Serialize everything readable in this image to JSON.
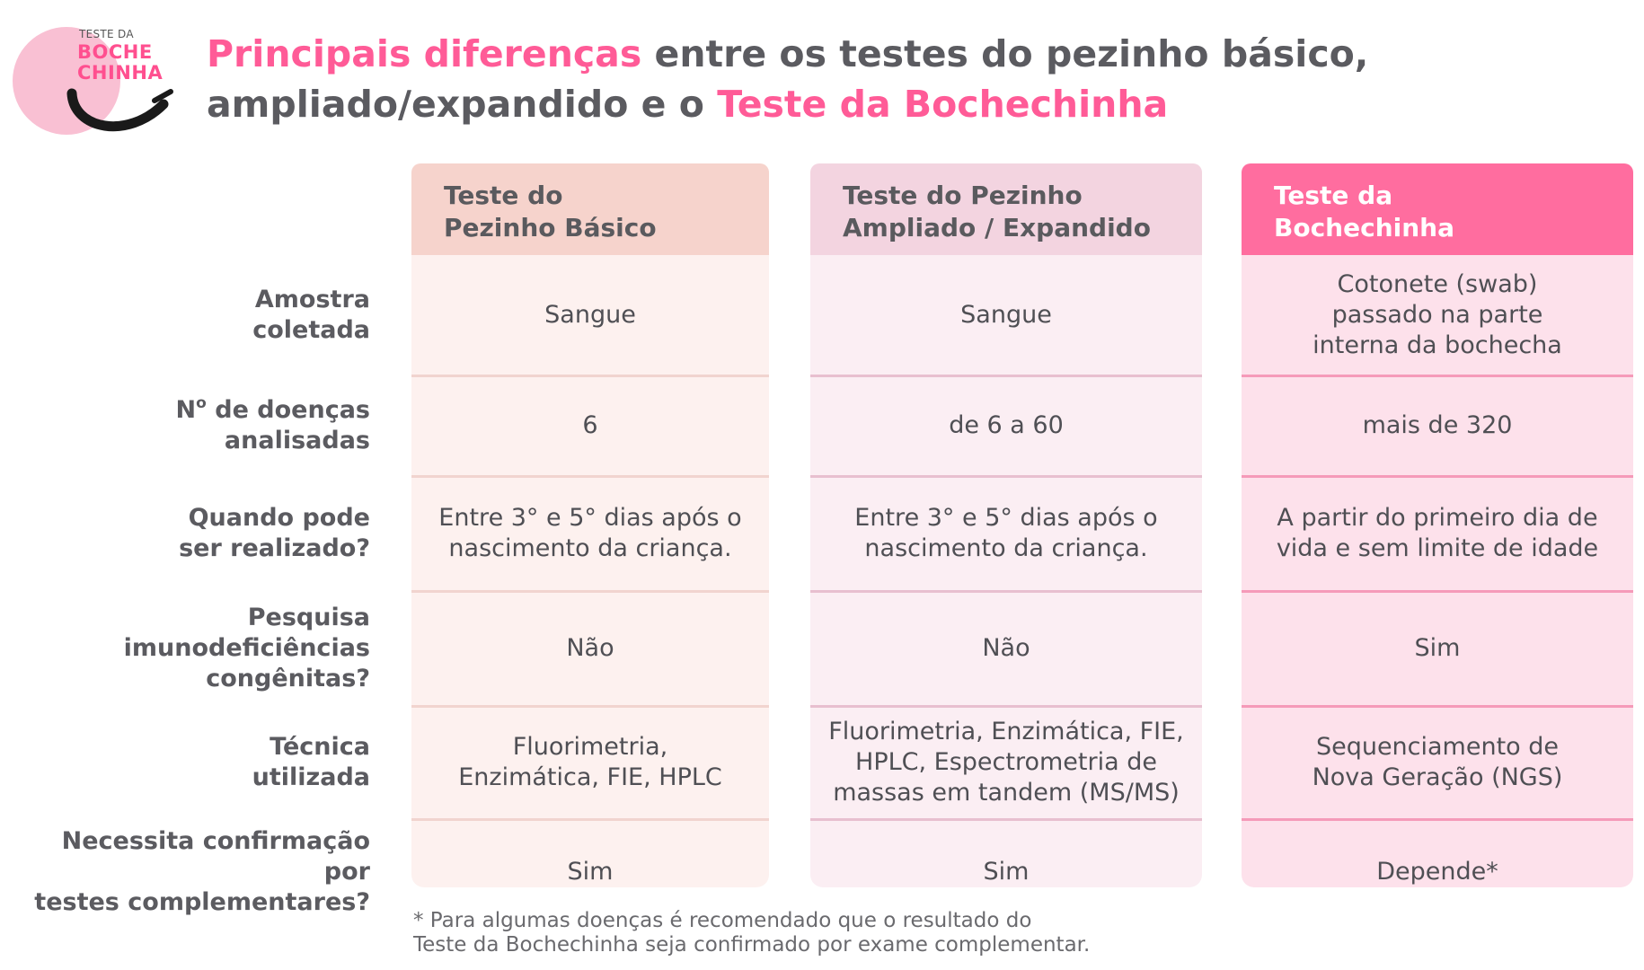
{
  "logo": {
    "small_text": "TESTE DA",
    "line1": "BOCHE",
    "line2": "CHINHA",
    "colors": {
      "circle": "#f9c0d3",
      "text": "#ff4f8f",
      "smile": "#1a1a1a"
    }
  },
  "title": {
    "part1": "Principais diferenças",
    "part2": " entre os testes do pezinho básico,",
    "part3": "ampliado/expandido e o ",
    "part4": "Teste da Bochechinha"
  },
  "columns": [
    {
      "header_line1": "Teste do",
      "header_line2": "Pezinho Básico"
    },
    {
      "header_line1": "Teste do Pezinho",
      "header_line2": "Ampliado / Expandido"
    },
    {
      "header_line1": "Teste da",
      "header_line2": "Bochechinha"
    }
  ],
  "rows": [
    {
      "label_line1": "Amostra",
      "label_line2": "coletada",
      "label_line3": "",
      "cells": [
        {
          "l1": "Sangue",
          "l2": "",
          "l3": ""
        },
        {
          "l1": "Sangue",
          "l2": "",
          "l3": ""
        },
        {
          "l1": "Cotonete (swab)",
          "l2": "passado na parte",
          "l3": "interna da bochecha"
        }
      ]
    },
    {
      "label_line1": "N",
      "label_sup": "o",
      "label_line1b": " de doenças",
      "label_line2": "analisadas",
      "label_line3": "",
      "cells": [
        {
          "l1": "6",
          "l2": "",
          "l3": ""
        },
        {
          "l1": "de 6 a 60",
          "l2": "",
          "l3": ""
        },
        {
          "l1": "mais de 320",
          "l2": "",
          "l3": ""
        }
      ]
    },
    {
      "label_line1": "Quando pode",
      "label_line2": "ser realizado?",
      "label_line3": "",
      "cells": [
        {
          "l1": "Entre 3° e 5° dias após o",
          "l2": "nascimento da criança.",
          "l3": ""
        },
        {
          "l1": "Entre 3° e 5° dias após o",
          "l2": "nascimento da criança.",
          "l3": ""
        },
        {
          "l1": "A partir do primeiro dia de",
          "l2": "vida e sem limite de idade",
          "l3": ""
        }
      ]
    },
    {
      "label_line1": "Pesquisa",
      "label_line2": "imunodeficiências",
      "label_line3": "congênitas?",
      "cells": [
        {
          "l1": "Não",
          "l2": "",
          "l3": ""
        },
        {
          "l1": "Não",
          "l2": "",
          "l3": ""
        },
        {
          "l1": "Sim",
          "l2": "",
          "l3": ""
        }
      ]
    },
    {
      "label_line1": "Técnica",
      "label_line2": "utilizada",
      "label_line3": "",
      "cells": [
        {
          "l1": "Fluorimetria,",
          "l2": "Enzimática, FIE, HPLC",
          "l3": ""
        },
        {
          "l1": "Fluorimetria, Enzimática, FIE,",
          "l2": "HPLC, Espectrometria de",
          "l3": "massas em tandem (MS/MS)"
        },
        {
          "l1": "Sequenciamento de",
          "l2": "Nova Geração (NGS)",
          "l3": ""
        }
      ]
    },
    {
      "label_line1": "Necessita confirmação por",
      "label_line2": "testes complementares?",
      "label_line3": "",
      "cells": [
        {
          "l1": "Sim",
          "l2": "",
          "l3": ""
        },
        {
          "l1": "Sim",
          "l2": "",
          "l3": ""
        },
        {
          "l1": "Depende*",
          "l2": "",
          "l3": ""
        }
      ]
    }
  ],
  "footnote": {
    "line1": "* Para algumas doenças é recomendado que o resultado do",
    "line2": "Teste da Bochechinha seja confirmado por exame complementar."
  },
  "colors": {
    "accent_pink": "#ff5b97",
    "col1_header": "#f6d3cc",
    "col2_header": "#f3d4e0",
    "col3_header": "#ff6d9f"
  }
}
